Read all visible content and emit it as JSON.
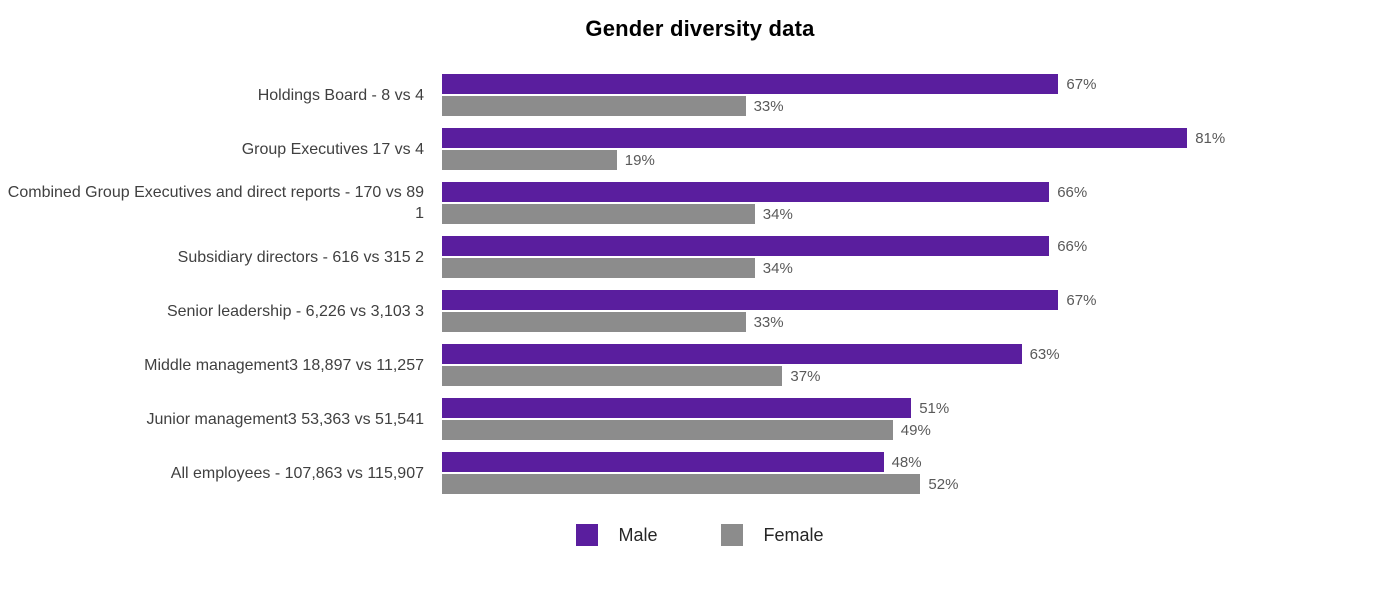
{
  "title": "Gender diversity data",
  "colors": {
    "male": "#5a1e9e",
    "female": "#8c8c8c"
  },
  "legend": {
    "items": [
      {
        "label": "Male",
        "color": "#5a1e9e"
      },
      {
        "label": "Female",
        "color": "#8c8c8c"
      }
    ]
  },
  "chart_data": {
    "type": "bar",
    "orientation": "horizontal",
    "title": "Gender diversity data",
    "categories": [
      "Holdings Board  - 8 vs 4",
      "Group Executives 17 vs 4",
      "Combined Group Executives and direct reports - 170 vs 89 1",
      "Subsidiary directors - 616 vs 315 2",
      "Senior leadership - 6,226 vs 3,103 3",
      "Middle management3 18,897 vs 11,257",
      "Junior management3 53,363 vs 51,541",
      "All employees   - 107,863 vs 115,907"
    ],
    "series": [
      {
        "name": "Male",
        "color": "#5a1e9e",
        "values": [
          67,
          81,
          66,
          66,
          67,
          63,
          51,
          48
        ]
      },
      {
        "name": "Female",
        "color": "#8c8c8c",
        "values": [
          33,
          19,
          34,
          34,
          33,
          37,
          49,
          52
        ]
      }
    ],
    "value_suffix": "%",
    "xlim": [
      0,
      100
    ],
    "grid": false,
    "legend_position": "bottom"
  }
}
